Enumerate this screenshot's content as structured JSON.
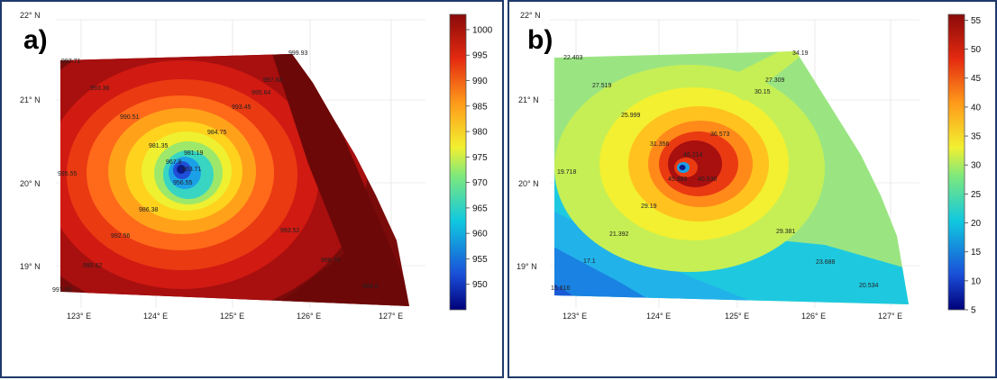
{
  "panels": [
    {
      "label": "a)",
      "lat_ticks": [
        "22° N",
        "21° N",
        "20° N",
        "19° N"
      ],
      "lon_ticks": [
        "123° E",
        "124° E",
        "125° E",
        "126° E",
        "127° E"
      ],
      "colorbar": {
        "min": 945,
        "max": 1003,
        "ticks": [
          950,
          955,
          960,
          965,
          970,
          975,
          980,
          985,
          990,
          995,
          1000
        ]
      },
      "contour_labels": [
        "997.71",
        "999.93",
        "993.36",
        "997.68",
        "995.64",
        "993.45",
        "990.51",
        "984.75",
        "981.35",
        "981.19",
        "967.8",
        "963.71",
        "956.55",
        "995.55",
        "986.38",
        "992.56",
        "993.52",
        "995.62",
        "998.76",
        "997.05",
        "999.6"
      ]
    },
    {
      "label": "b)",
      "lat_ticks": [
        "22° N",
        "21° N",
        "20° N",
        "19° N"
      ],
      "lon_ticks": [
        "123° E",
        "124° E",
        "125° E",
        "126° E",
        "127° E"
      ],
      "colorbar": {
        "min": 5,
        "max": 56,
        "ticks": [
          5,
          10,
          15,
          20,
          25,
          30,
          35,
          40,
          45,
          50,
          55
        ]
      },
      "contour_labels": [
        "22.403",
        "34.19",
        "27.519",
        "27.309",
        "30.15",
        "25.999",
        "31.356",
        "36.573",
        "46.214",
        "19.718",
        "45.886",
        "40.538",
        "29.19",
        "21.392",
        "29.381",
        "17.1",
        "23.688",
        "15.616",
        "20.534"
      ]
    }
  ],
  "chart_data": [
    {
      "type": "heatmap",
      "title": "a)",
      "xlabel": "",
      "ylabel": "",
      "x_range": [
        122.7,
        127.2
      ],
      "y_range": [
        18.6,
        22.0
      ],
      "colorbar_range": [
        945,
        1003
      ],
      "contour_values": [
        997.71,
        999.93,
        993.36,
        997.68,
        995.64,
        993.45,
        990.51,
        984.75,
        981.35,
        981.19,
        967.8,
        963.71,
        956.55,
        995.55,
        986.38,
        992.56,
        993.52,
        995.62,
        998.76,
        997.05,
        999.6
      ]
    },
    {
      "type": "heatmap",
      "title": "b)",
      "xlabel": "",
      "ylabel": "",
      "x_range": [
        122.7,
        127.2
      ],
      "y_range": [
        18.6,
        22.0
      ],
      "colorbar_range": [
        5,
        56
      ],
      "contour_values": [
        22.403,
        34.19,
        27.519,
        27.309,
        30.15,
        25.999,
        31.356,
        36.573,
        46.214,
        19.718,
        45.886,
        40.538,
        29.19,
        21.392,
        29.381,
        17.1,
        23.688,
        15.616,
        20.534
      ]
    }
  ]
}
